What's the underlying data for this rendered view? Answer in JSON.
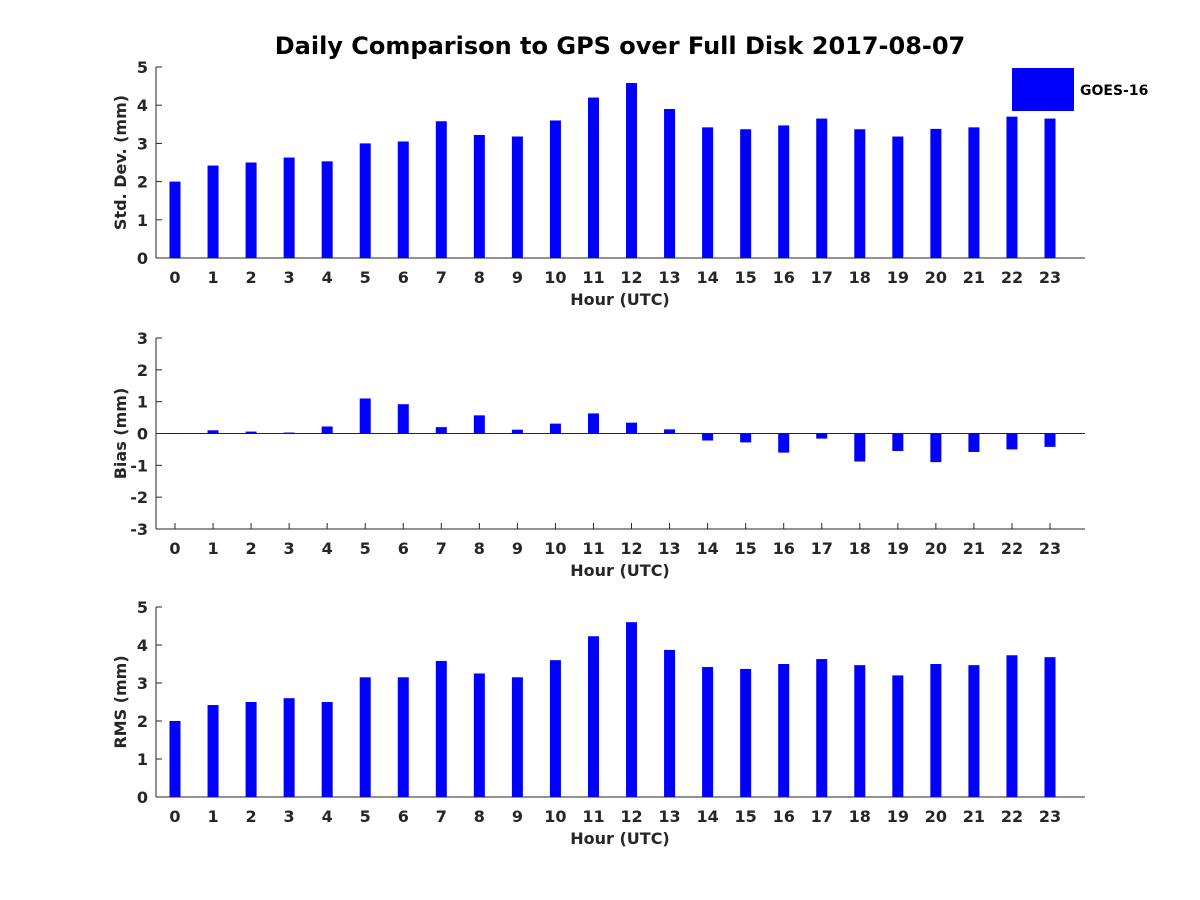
{
  "title": "Daily Comparison to GPS over Full Disk 2017-08-07",
  "legend": {
    "label": "GOES-16",
    "color": "#0000ff"
  },
  "chart_data": [
    {
      "type": "bar",
      "title": "Daily Comparison to GPS over Full Disk 2017-08-07",
      "xlabel": "Hour (UTC)",
      "ylabel": "Std. Dev. (mm)",
      "categories": [
        "0",
        "1",
        "2",
        "3",
        "4",
        "5",
        "6",
        "7",
        "8",
        "9",
        "10",
        "11",
        "12",
        "13",
        "14",
        "15",
        "16",
        "17",
        "18",
        "19",
        "20",
        "21",
        "22",
        "23"
      ],
      "series": [
        {
          "name": "GOES-16",
          "values": [
            2.0,
            2.42,
            2.5,
            2.63,
            2.53,
            3.0,
            3.05,
            3.58,
            3.22,
            3.18,
            3.6,
            4.2,
            4.58,
            3.9,
            3.42,
            3.37,
            3.47,
            3.65,
            3.37,
            3.18,
            3.38,
            3.42,
            3.7,
            3.65
          ]
        }
      ],
      "ylim": [
        0,
        5
      ],
      "yticks": [
        "0",
        "1",
        "2",
        "3",
        "4",
        "5"
      ],
      "legend": "top-right"
    },
    {
      "type": "bar",
      "xlabel": "Hour (UTC)",
      "ylabel": "Bias (mm)",
      "categories": [
        "0",
        "1",
        "2",
        "3",
        "4",
        "5",
        "6",
        "7",
        "8",
        "9",
        "10",
        "11",
        "12",
        "13",
        "14",
        "15",
        "16",
        "17",
        "18",
        "19",
        "20",
        "21",
        "22",
        "23"
      ],
      "series": [
        {
          "name": "GOES-16",
          "values": [
            0.0,
            0.1,
            0.06,
            0.03,
            0.22,
            1.1,
            0.92,
            0.2,
            0.57,
            0.12,
            0.31,
            0.63,
            0.34,
            0.13,
            -0.22,
            -0.28,
            -0.6,
            -0.16,
            -0.88,
            -0.55,
            -0.9,
            -0.58,
            -0.5,
            -0.42
          ]
        }
      ],
      "ylim": [
        -3,
        3
      ],
      "yticks": [
        "-3",
        "-2",
        "-1",
        "0",
        "1",
        "2",
        "3"
      ]
    },
    {
      "type": "bar",
      "xlabel": "Hour (UTC)",
      "ylabel": "RMS (mm)",
      "categories": [
        "0",
        "1",
        "2",
        "3",
        "4",
        "5",
        "6",
        "7",
        "8",
        "9",
        "10",
        "11",
        "12",
        "13",
        "14",
        "15",
        "16",
        "17",
        "18",
        "19",
        "20",
        "21",
        "22",
        "23"
      ],
      "series": [
        {
          "name": "GOES-16",
          "values": [
            2.0,
            2.42,
            2.5,
            2.6,
            2.5,
            3.15,
            3.15,
            3.58,
            3.25,
            3.15,
            3.6,
            4.23,
            4.6,
            3.87,
            3.42,
            3.37,
            3.5,
            3.63,
            3.47,
            3.2,
            3.5,
            3.47,
            3.73,
            3.68
          ]
        }
      ],
      "ylim": [
        0,
        5
      ],
      "yticks": [
        "0",
        "1",
        "2",
        "3",
        "4",
        "5"
      ]
    }
  ]
}
